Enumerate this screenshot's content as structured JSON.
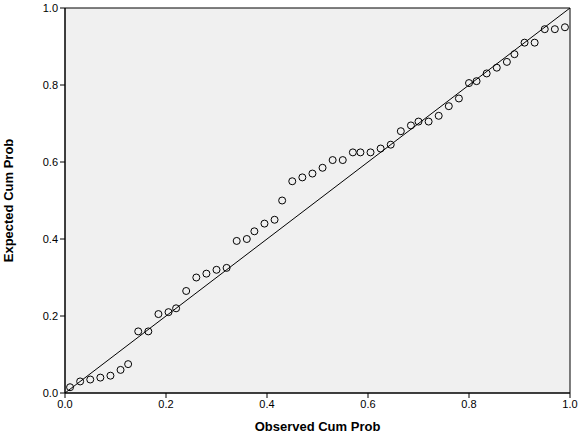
{
  "chart_data": {
    "type": "scatter",
    "x_label": "Observed Cum Prob",
    "y_label": "Expected Cum Prob",
    "x": [
      0.01,
      0.03,
      0.05,
      0.07,
      0.09,
      0.11,
      0.125,
      0.145,
      0.165,
      0.185,
      0.205,
      0.22,
      0.24,
      0.26,
      0.28,
      0.3,
      0.32,
      0.34,
      0.36,
      0.375,
      0.395,
      0.415,
      0.43,
      0.45,
      0.47,
      0.49,
      0.51,
      0.53,
      0.55,
      0.57,
      0.585,
      0.605,
      0.625,
      0.645,
      0.665,
      0.685,
      0.7,
      0.72,
      0.74,
      0.76,
      0.78,
      0.8,
      0.815,
      0.835,
      0.855,
      0.875,
      0.89,
      0.91,
      0.93,
      0.95,
      0.97,
      0.99
    ],
    "values": [
      0.015,
      0.03,
      0.035,
      0.04,
      0.045,
      0.06,
      0.075,
      0.16,
      0.16,
      0.205,
      0.21,
      0.22,
      0.265,
      0.3,
      0.31,
      0.32,
      0.325,
      0.395,
      0.4,
      0.42,
      0.44,
      0.45,
      0.5,
      0.55,
      0.56,
      0.57,
      0.585,
      0.605,
      0.605,
      0.625,
      0.625,
      0.625,
      0.635,
      0.645,
      0.68,
      0.695,
      0.705,
      0.705,
      0.72,
      0.745,
      0.765,
      0.805,
      0.81,
      0.83,
      0.845,
      0.86,
      0.88,
      0.91,
      0.91,
      0.945,
      0.945,
      0.95
    ],
    "color": "#000000",
    "marker": "open_circle",
    "reference_line": {
      "x": [
        0,
        1
      ],
      "values": [
        0,
        1
      ],
      "color": "#000000",
      "line_style": "solid"
    },
    "xlim": [
      0,
      1
    ],
    "ylim": [
      0,
      1
    ],
    "xticks": [
      {
        "value": 0,
        "label": "0.0"
      },
      0.2,
      0.4,
      0.6,
      0.8,
      {
        "value": 1,
        "label": "1.0"
      }
    ],
    "yticks": [
      {
        "value": 0,
        "label": "0.0"
      },
      0.2,
      0.4,
      0.6,
      0.8,
      {
        "value": 1,
        "label": "1.0"
      }
    ],
    "grid": false
  }
}
